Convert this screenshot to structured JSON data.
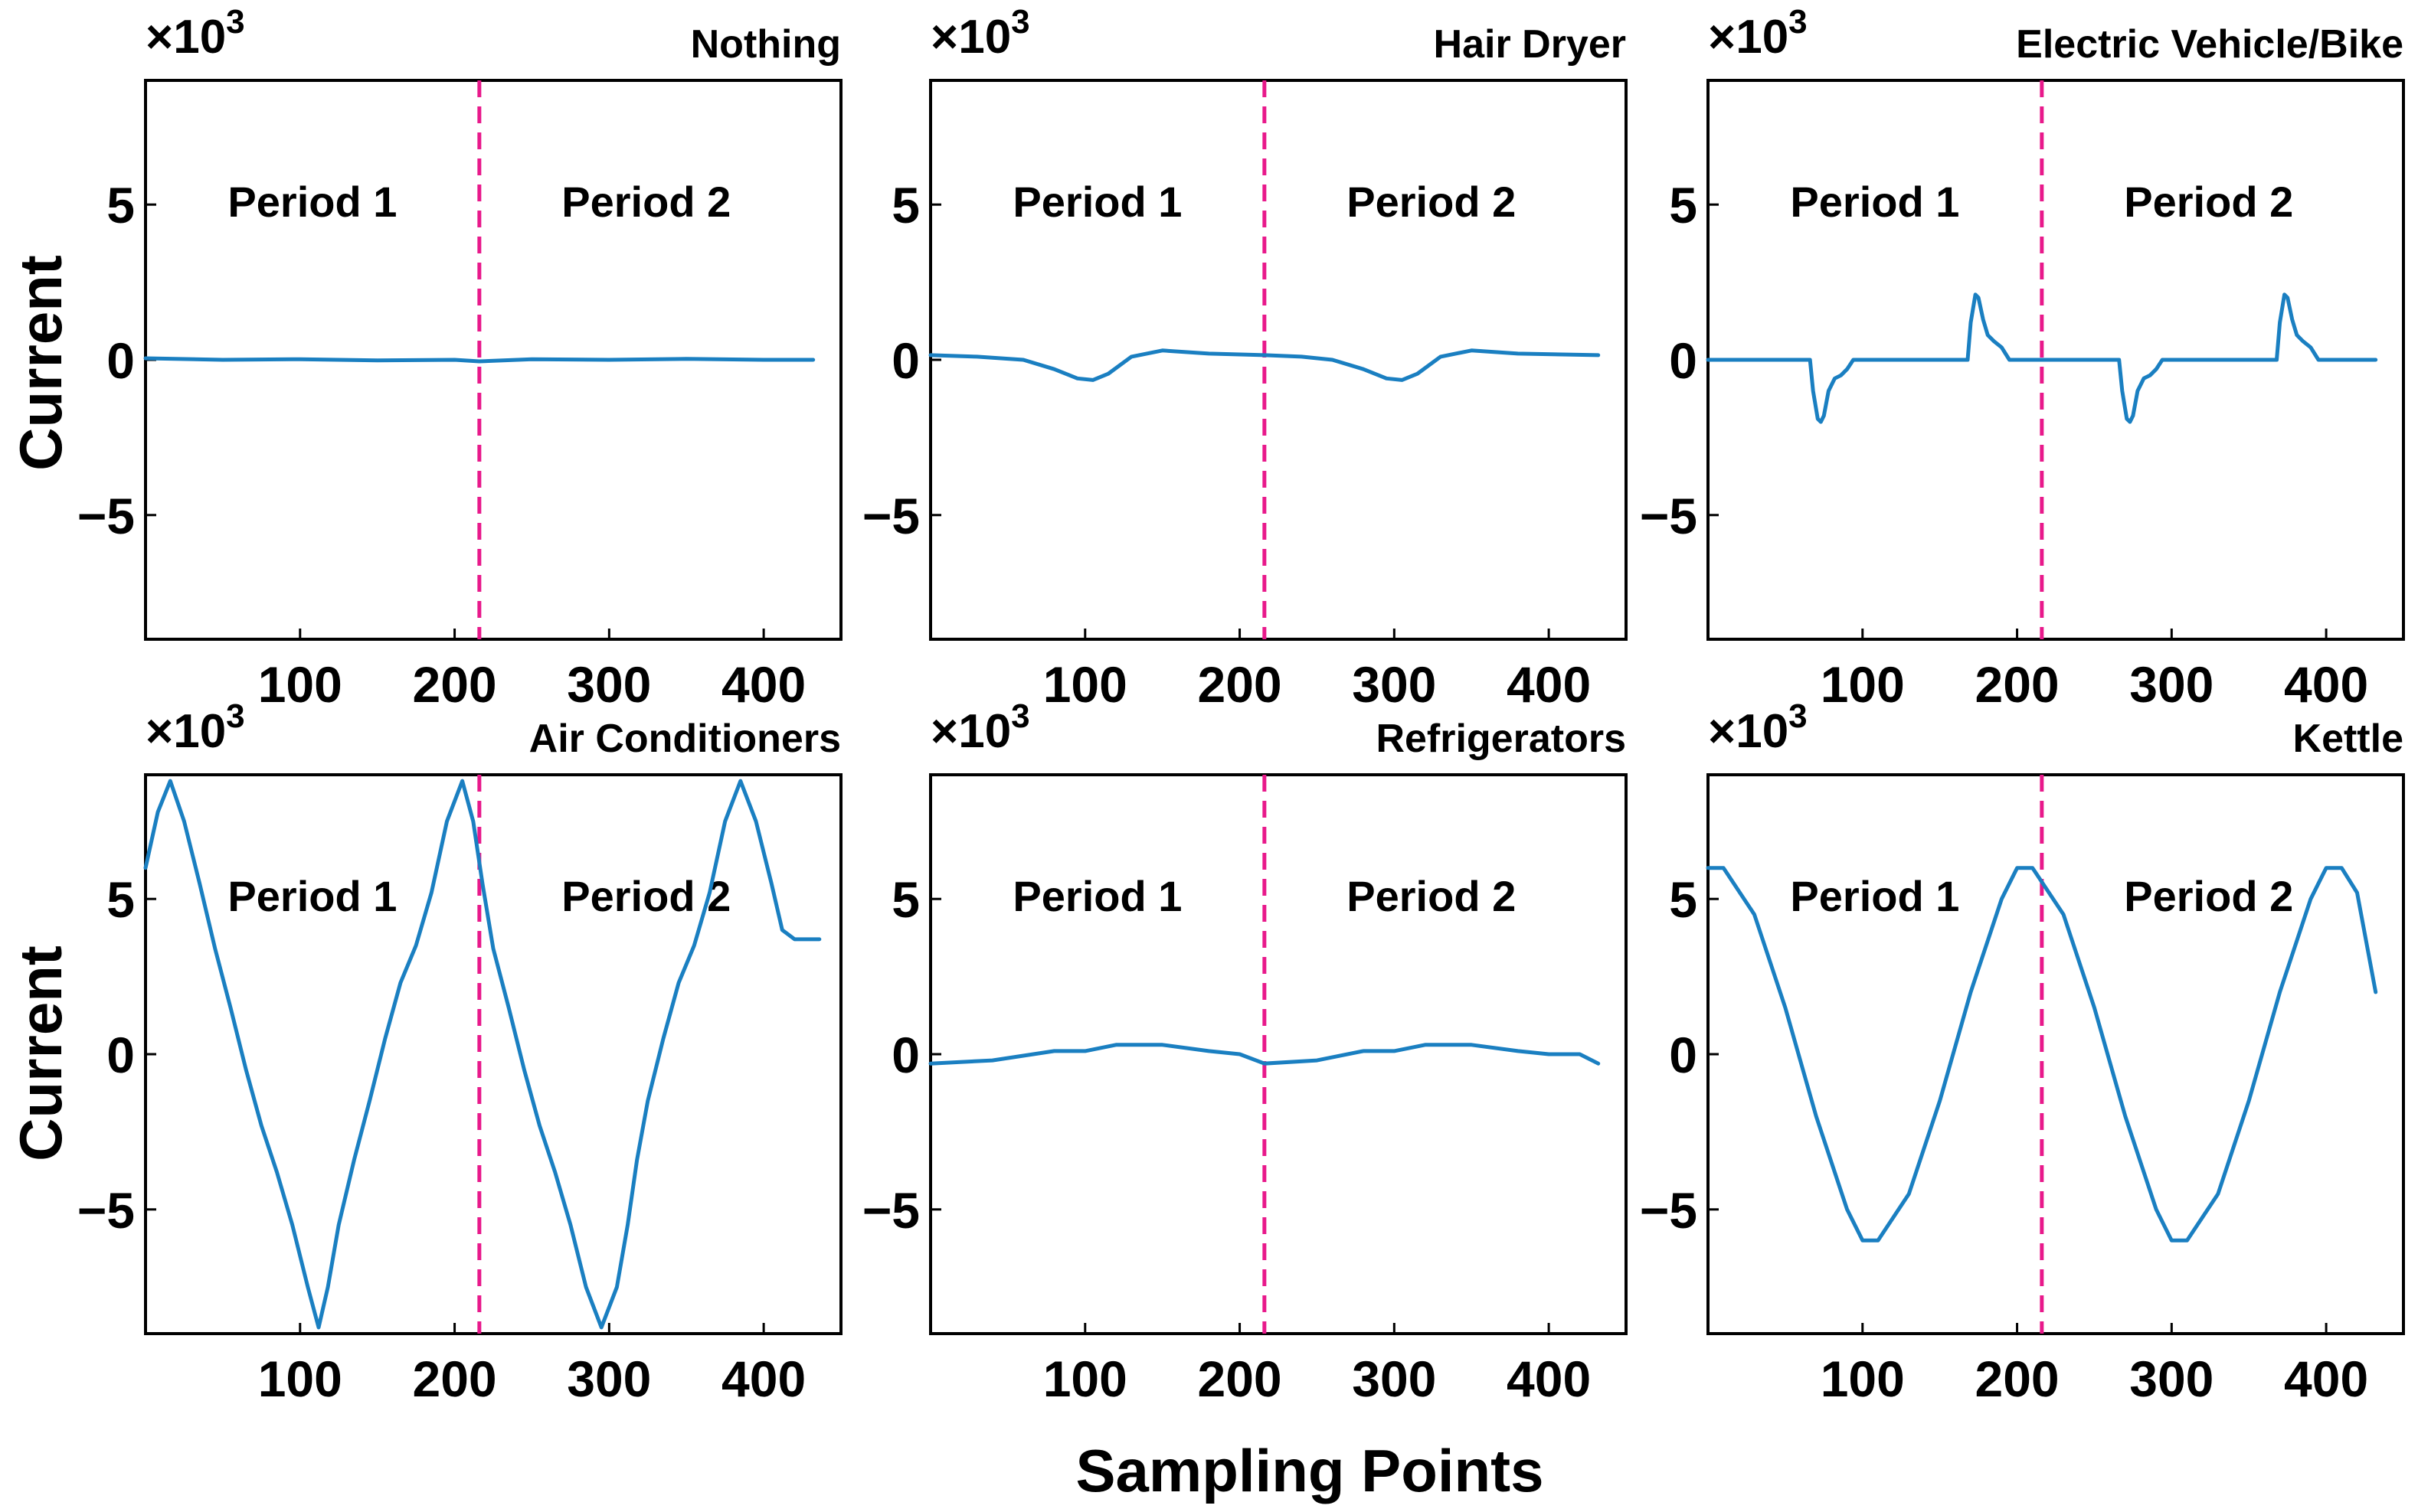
{
  "figure": {
    "y_axis_title": "Current",
    "x_axis_title": "Sampling Points",
    "scale_label": "×10",
    "scale_exponent": "3",
    "period_labels": [
      "Period 1",
      "Period 2"
    ]
  },
  "colors": {
    "series": "#1a7fc1",
    "divider": "#e8198b"
  },
  "chart_data": [
    {
      "type": "line",
      "title": "Nothing",
      "xlabel": "Sampling Points",
      "ylabel": "Current",
      "y_scale": "×10^3",
      "xlim": [
        0,
        450
      ],
      "ylim": [
        -9,
        9
      ],
      "xticks": [
        100,
        200,
        300,
        400
      ],
      "yticks": [
        -5,
        0,
        5
      ],
      "divider_x": 216,
      "annotations": [
        "Period 1",
        "Period 2"
      ],
      "series": [
        {
          "name": "Nothing",
          "x": [
            0,
            50,
            100,
            150,
            200,
            216,
            250,
            300,
            350,
            400,
            432
          ],
          "y": [
            0.05,
            0.0,
            0.02,
            -0.02,
            0.0,
            -0.05,
            0.02,
            0.0,
            0.03,
            0.0,
            0.0
          ]
        }
      ]
    },
    {
      "type": "line",
      "title": "Hair Dryer",
      "xlabel": "Sampling Points",
      "ylabel": "Current",
      "y_scale": "×10^3",
      "xlim": [
        0,
        450
      ],
      "ylim": [
        -9,
        9
      ],
      "xticks": [
        100,
        200,
        300,
        400
      ],
      "yticks": [
        -5,
        0,
        5
      ],
      "divider_x": 216,
      "annotations": [
        "Period 1",
        "Period 2"
      ],
      "series": [
        {
          "name": "Hair Dryer",
          "x": [
            0,
            30,
            60,
            80,
            95,
            105,
            115,
            130,
            150,
            180,
            216,
            240,
            260,
            280,
            295,
            305,
            315,
            330,
            350,
            380,
            432
          ],
          "y": [
            0.15,
            0.1,
            0.0,
            -0.3,
            -0.6,
            -0.65,
            -0.45,
            0.1,
            0.3,
            0.2,
            0.15,
            0.1,
            0.0,
            -0.3,
            -0.6,
            -0.65,
            -0.45,
            0.1,
            0.3,
            0.2,
            0.15
          ]
        }
      ]
    },
    {
      "type": "line",
      "title": "Electric Vehicle/Bike",
      "xlabel": "Sampling Points",
      "ylabel": "Current",
      "y_scale": "×10^3",
      "xlim": [
        0,
        450
      ],
      "ylim": [
        -9,
        9
      ],
      "xticks": [
        100,
        200,
        300,
        400
      ],
      "yticks": [
        -5,
        0,
        5
      ],
      "divider_x": 216,
      "annotations": [
        "Period 1",
        "Period 2"
      ],
      "series": [
        {
          "name": "Electric Vehicle/Bike",
          "x": [
            0,
            66,
            68,
            71,
            73,
            75,
            78,
            82,
            86,
            90,
            94,
            100,
            168,
            170,
            173,
            175,
            178,
            181,
            185,
            190,
            195,
            216,
            266,
            268,
            271,
            273,
            275,
            278,
            282,
            286,
            290,
            294,
            300,
            368,
            370,
            373,
            375,
            378,
            381,
            385,
            390,
            395,
            432
          ],
          "y": [
            0.0,
            0.0,
            -1.0,
            -1.9,
            -2.0,
            -1.8,
            -1.0,
            -0.6,
            -0.5,
            -0.3,
            0.0,
            0.0,
            0.0,
            1.2,
            2.1,
            2.0,
            1.3,
            0.8,
            0.6,
            0.4,
            0.0,
            0.0,
            0.0,
            -1.0,
            -1.9,
            -2.0,
            -1.8,
            -1.0,
            -0.6,
            -0.5,
            -0.3,
            0.0,
            0.0,
            0.0,
            1.2,
            2.1,
            2.0,
            1.3,
            0.8,
            0.6,
            0.4,
            0.0,
            0.0
          ]
        }
      ]
    },
    {
      "type": "line",
      "title": "Air Conditioners",
      "xlabel": "Sampling Points",
      "ylabel": "Current",
      "y_scale": "×10^3",
      "xlim": [
        0,
        450
      ],
      "ylim": [
        -9,
        9
      ],
      "xticks": [
        100,
        200,
        300,
        400
      ],
      "yticks": [
        -5,
        0,
        5
      ],
      "divider_x": 216,
      "annotations": [
        "Period 1",
        "Period 2"
      ],
      "series": [
        {
          "name": "Air Conditioners",
          "x": [
            0,
            8,
            16,
            25,
            35,
            45,
            55,
            65,
            75,
            85,
            95,
            105,
            112,
            118,
            125,
            135,
            145,
            155,
            165,
            175,
            185,
            195,
            205,
            212,
            218,
            225,
            235,
            245,
            255,
            265,
            275,
            285,
            295,
            305,
            312,
            318,
            325,
            335,
            345,
            355,
            365,
            375,
            385,
            395,
            405,
            412,
            420,
            430,
            436
          ],
          "y": [
            6.0,
            7.8,
            8.8,
            7.5,
            5.5,
            3.4,
            1.5,
            -0.5,
            -2.3,
            -3.8,
            -5.5,
            -7.5,
            -8.8,
            -7.5,
            -5.5,
            -3.4,
            -1.5,
            0.5,
            2.3,
            3.5,
            5.2,
            7.5,
            8.8,
            7.5,
            5.5,
            3.4,
            1.5,
            -0.5,
            -2.3,
            -3.8,
            -5.5,
            -7.5,
            -8.8,
            -7.5,
            -5.5,
            -3.4,
            -1.5,
            0.5,
            2.3,
            3.5,
            5.2,
            7.5,
            8.8,
            7.5,
            5.5,
            4.0,
            3.7,
            3.7,
            3.7
          ]
        }
      ]
    },
    {
      "type": "line",
      "title": "Refrigerators",
      "xlabel": "Sampling Points",
      "ylabel": "Current",
      "y_scale": "×10^3",
      "xlim": [
        0,
        450
      ],
      "ylim": [
        -9,
        9
      ],
      "xticks": [
        100,
        200,
        300,
        400
      ],
      "yticks": [
        -5,
        0,
        5
      ],
      "divider_x": 216,
      "annotations": [
        "Period 1",
        "Period 2"
      ],
      "series": [
        {
          "name": "Refrigerators",
          "x": [
            0,
            40,
            80,
            100,
            120,
            150,
            180,
            200,
            216,
            250,
            280,
            300,
            320,
            350,
            380,
            400,
            420,
            432
          ],
          "y": [
            -0.3,
            -0.2,
            0.1,
            0.1,
            0.3,
            0.3,
            0.1,
            0.0,
            -0.3,
            -0.2,
            0.1,
            0.1,
            0.3,
            0.3,
            0.1,
            0.0,
            0.0,
            -0.3
          ]
        }
      ]
    },
    {
      "type": "line",
      "title": "Kettle",
      "xlabel": "Sampling Points",
      "ylabel": "Current",
      "y_scale": "×10^3",
      "xlim": [
        0,
        450
      ],
      "ylim": [
        -9,
        9
      ],
      "xticks": [
        100,
        200,
        300,
        400
      ],
      "yticks": [
        -5,
        0,
        5
      ],
      "divider_x": 216,
      "annotations": [
        "Period 1",
        "Period 2"
      ],
      "series": [
        {
          "name": "Kettle",
          "x": [
            0,
            10,
            30,
            50,
            70,
            90,
            100,
            110,
            130,
            150,
            170,
            190,
            200,
            210,
            230,
            250,
            270,
            290,
            300,
            310,
            330,
            350,
            370,
            390,
            400,
            410,
            420,
            432
          ],
          "y": [
            6.0,
            6.0,
            4.5,
            1.5,
            -2.0,
            -5.0,
            -6.0,
            -6.0,
            -4.5,
            -1.5,
            2.0,
            5.0,
            6.0,
            6.0,
            4.5,
            1.5,
            -2.0,
            -5.0,
            -6.0,
            -6.0,
            -4.5,
            -1.5,
            2.0,
            5.0,
            6.0,
            6.0,
            5.2,
            2.0
          ]
        }
      ]
    }
  ]
}
